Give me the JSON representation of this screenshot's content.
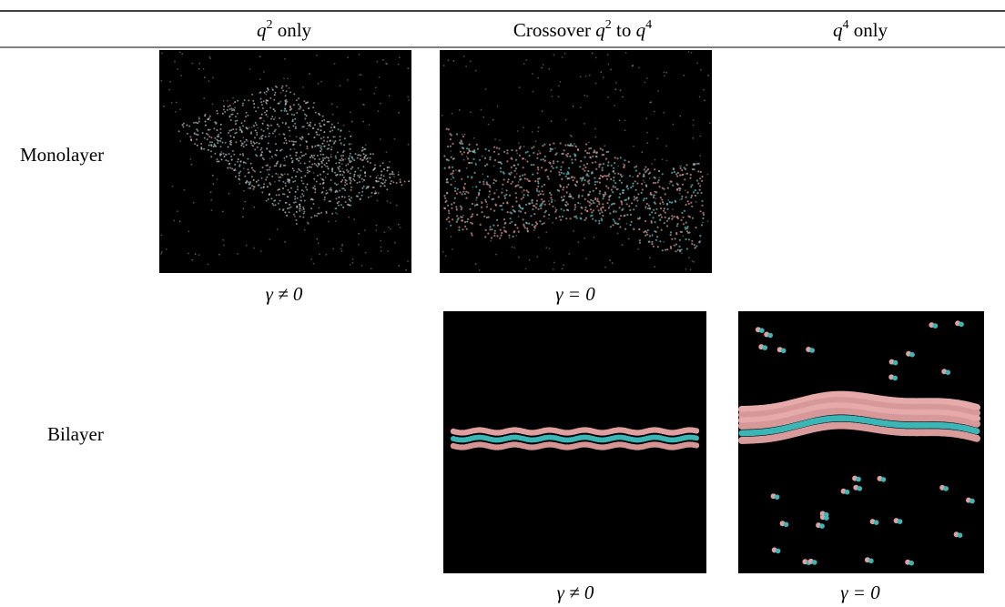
{
  "header": [
    [
      "q",
      "2",
      " only"
    ],
    [
      "Crossover ",
      "q",
      "2",
      " to ",
      "q",
      "4"
    ],
    [
      "q",
      "4",
      " only"
    ]
  ],
  "rows": [
    {
      "label": "Monolayer",
      "captions": [
        "γ ≠ 0",
        "γ = 0"
      ]
    },
    {
      "label": "Bilayer",
      "captions": [
        "γ ≠ 0",
        "γ = 0"
      ]
    }
  ]
}
